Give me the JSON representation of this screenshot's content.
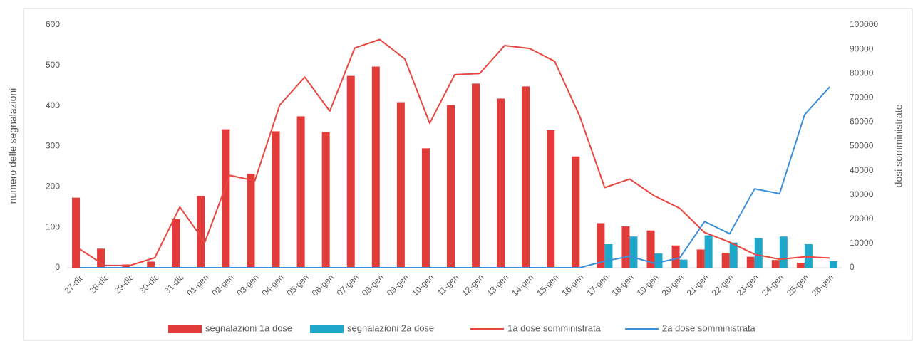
{
  "chart_data": {
    "type": "combo",
    "ylabel": "numero delle segnalazioni",
    "y2label": "dosi somministrate",
    "categories": [
      "27-dic",
      "28-dic",
      "29-dic",
      "30-dic",
      "31-dic",
      "01-gen",
      "02-gen",
      "03-gen",
      "04-gen",
      "05-gen",
      "06-gen",
      "07-gen",
      "08-gen",
      "09-gen",
      "10-gen",
      "11-gen",
      "12-gen",
      "13-gen",
      "14-gen",
      "15-gen",
      "16-gen",
      "17-gen",
      "18-gen",
      "19-gen",
      "20-gen",
      "21-gen",
      "22-gen",
      "23-gen",
      "24-gen",
      "25-gen",
      "26-gen"
    ],
    "series": [
      {
        "name": "segnalazioni 1a dose",
        "type": "bar",
        "color": "#e23c3a",
        "values": [
          173,
          47,
          8,
          15,
          120,
          177,
          342,
          232,
          337,
          374,
          335,
          474,
          497,
          409,
          295,
          402,
          455,
          418,
          448,
          340,
          275,
          110,
          102,
          92,
          55,
          45,
          37,
          27,
          19,
          12,
          0
        ]
      },
      {
        "name": "segnalazioni 2a dose",
        "type": "bar",
        "color": "#1ea7c9",
        "values": [
          0,
          0,
          0,
          0,
          0,
          0,
          0,
          0,
          0,
          0,
          0,
          0,
          0,
          0,
          0,
          0,
          0,
          0,
          0,
          0,
          0,
          58,
          77,
          35,
          20,
          80,
          62,
          73,
          77,
          58,
          16
        ]
      },
      {
        "name": "1a dose somministrata",
        "type": "line",
        "axis": "y2",
        "color": "#e8473f",
        "values": [
          7600,
          900,
          900,
          4100,
          25000,
          10500,
          38000,
          35800,
          67000,
          78500,
          64500,
          90500,
          94000,
          86000,
          59500,
          79500,
          80000,
          91500,
          90300,
          85000,
          62500,
          33000,
          36500,
          29500,
          24500,
          14500,
          10500,
          5500,
          3500,
          4500,
          4000
        ]
      },
      {
        "name": "2a dose somministrata",
        "type": "line",
        "axis": "y2",
        "color": "#3b8fd8",
        "values": [
          0,
          0,
          0,
          0,
          0,
          0,
          0,
          0,
          0,
          0,
          0,
          0,
          0,
          0,
          0,
          0,
          0,
          0,
          0,
          0,
          0,
          2700,
          4700,
          1800,
          4000,
          19000,
          14000,
          32500,
          30500,
          63000,
          74500
        ]
      }
    ],
    "ylim": [
      0,
      600
    ],
    "yticks": [
      0,
      100,
      200,
      300,
      400,
      500,
      600
    ],
    "y2lim": [
      0,
      100000
    ],
    "y2ticks": [
      0,
      10000,
      20000,
      30000,
      40000,
      50000,
      60000,
      70000,
      80000,
      90000,
      100000
    ],
    "legend": "bottom"
  }
}
